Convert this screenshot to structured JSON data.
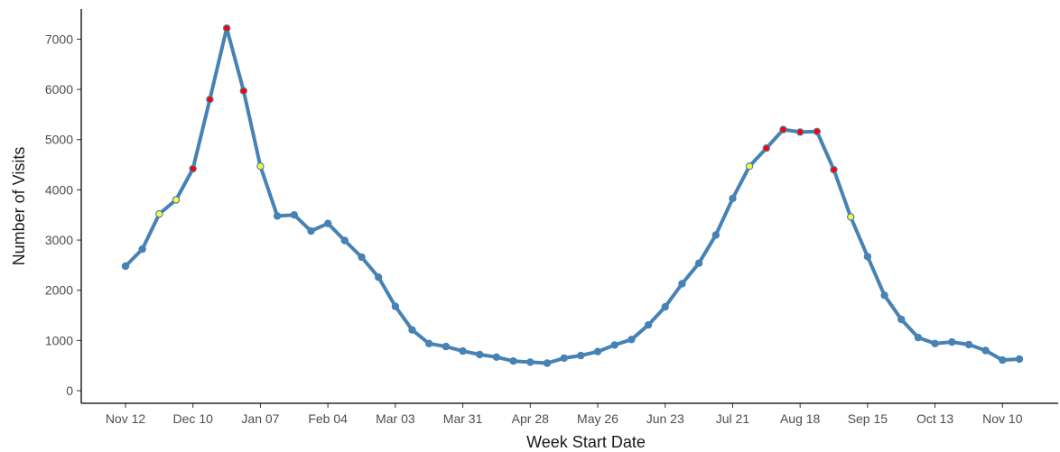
{
  "chart_data": {
    "type": "line",
    "title": "",
    "xlabel": "Week Start Date",
    "ylabel": "Number of Visits",
    "x_tick_labels": [
      "Nov 12",
      "Dec 10",
      "Jan 07",
      "Feb 04",
      "Mar 03",
      "Mar 31",
      "Apr 28",
      "May 26",
      "Jun 23",
      "Jul 21",
      "Aug 18",
      "Sep 15",
      "Oct 13",
      "Nov 10"
    ],
    "y_ticks": [
      0,
      1000,
      2000,
      3000,
      4000,
      5000,
      6000,
      7000
    ],
    "ylim": [
      -250,
      7600
    ],
    "grid": false,
    "line_color": "#4682b4",
    "marker_colors": {
      "normal": "#4682b4",
      "elevated": "#ffff33",
      "high": "#ff0000"
    },
    "series": [
      {
        "points": [
          {
            "x": "Nov 12",
            "y": 2480,
            "level": "normal"
          },
          {
            "x": "Nov 19",
            "y": 2820,
            "level": "normal"
          },
          {
            "x": "Nov 26",
            "y": 3520,
            "level": "elevated"
          },
          {
            "x": "Dec 03",
            "y": 3800,
            "level": "elevated"
          },
          {
            "x": "Dec 10",
            "y": 4420,
            "level": "high"
          },
          {
            "x": "Dec 17",
            "y": 5800,
            "level": "high"
          },
          {
            "x": "Dec 24",
            "y": 7220,
            "level": "high"
          },
          {
            "x": "Dec 31",
            "y": 5970,
            "level": "high"
          },
          {
            "x": "Jan 07",
            "y": 4470,
            "level": "elevated"
          },
          {
            "x": "Jan 14",
            "y": 3480,
            "level": "normal"
          },
          {
            "x": "Jan 21",
            "y": 3500,
            "level": "normal"
          },
          {
            "x": "Jan 28",
            "y": 3180,
            "level": "normal"
          },
          {
            "x": "Feb 04",
            "y": 3330,
            "level": "normal"
          },
          {
            "x": "Feb 11",
            "y": 2990,
            "level": "normal"
          },
          {
            "x": "Feb 18",
            "y": 2660,
            "level": "normal"
          },
          {
            "x": "Feb 25",
            "y": 2260,
            "level": "normal"
          },
          {
            "x": "Mar 03",
            "y": 1680,
            "level": "normal"
          },
          {
            "x": "Mar 10",
            "y": 1210,
            "level": "normal"
          },
          {
            "x": "Mar 17",
            "y": 940,
            "level": "normal"
          },
          {
            "x": "Mar 24",
            "y": 880,
            "level": "normal"
          },
          {
            "x": "Mar 31",
            "y": 790,
            "level": "normal"
          },
          {
            "x": "Apr 07",
            "y": 720,
            "level": "normal"
          },
          {
            "x": "Apr 14",
            "y": 670,
            "level": "normal"
          },
          {
            "x": "Apr 21",
            "y": 590,
            "level": "normal"
          },
          {
            "x": "Apr 28",
            "y": 570,
            "level": "normal"
          },
          {
            "x": "May 05",
            "y": 550,
            "level": "normal"
          },
          {
            "x": "May 12",
            "y": 650,
            "level": "normal"
          },
          {
            "x": "May 19",
            "y": 700,
            "level": "normal"
          },
          {
            "x": "May 26",
            "y": 780,
            "level": "normal"
          },
          {
            "x": "Jun 02",
            "y": 910,
            "level": "normal"
          },
          {
            "x": "Jun 09",
            "y": 1020,
            "level": "normal"
          },
          {
            "x": "Jun 16",
            "y": 1310,
            "level": "normal"
          },
          {
            "x": "Jun 23",
            "y": 1670,
            "level": "normal"
          },
          {
            "x": "Jun 30",
            "y": 2130,
            "level": "normal"
          },
          {
            "x": "Jul 07",
            "y": 2540,
            "level": "normal"
          },
          {
            "x": "Jul 14",
            "y": 3100,
            "level": "normal"
          },
          {
            "x": "Jul 21",
            "y": 3830,
            "level": "normal"
          },
          {
            "x": "Jul 28",
            "y": 4470,
            "level": "elevated"
          },
          {
            "x": "Aug 04",
            "y": 4830,
            "level": "high"
          },
          {
            "x": "Aug 11",
            "y": 5200,
            "level": "high"
          },
          {
            "x": "Aug 18",
            "y": 5150,
            "level": "high"
          },
          {
            "x": "Aug 25",
            "y": 5160,
            "level": "high"
          },
          {
            "x": "Sep 01",
            "y": 4400,
            "level": "high"
          },
          {
            "x": "Sep 08",
            "y": 3460,
            "level": "elevated"
          },
          {
            "x": "Sep 15",
            "y": 2670,
            "level": "normal"
          },
          {
            "x": "Sep 22",
            "y": 1900,
            "level": "normal"
          },
          {
            "x": "Sep 29",
            "y": 1420,
            "level": "normal"
          },
          {
            "x": "Oct 06",
            "y": 1060,
            "level": "normal"
          },
          {
            "x": "Oct 13",
            "y": 940,
            "level": "normal"
          },
          {
            "x": "Oct 20",
            "y": 970,
            "level": "normal"
          },
          {
            "x": "Oct 27",
            "y": 920,
            "level": "normal"
          },
          {
            "x": "Nov 03",
            "y": 800,
            "level": "normal"
          },
          {
            "x": "Nov 10",
            "y": 610,
            "level": "normal"
          },
          {
            "x": "Nov 17",
            "y": 630,
            "level": "normal"
          }
        ]
      }
    ]
  }
}
